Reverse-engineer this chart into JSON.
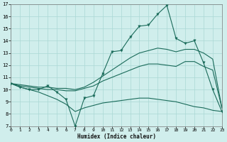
{
  "xlabel": "Humidex (Indice chaleur)",
  "bg_color": "#d0eeec",
  "grid_color": "#aad8d4",
  "line_color": "#1a6b5a",
  "xlim": [
    0,
    23
  ],
  "ylim": [
    7,
    17
  ],
  "xticks": [
    0,
    1,
    2,
    3,
    4,
    5,
    6,
    7,
    8,
    9,
    10,
    11,
    12,
    13,
    14,
    15,
    16,
    17,
    18,
    19,
    20,
    21,
    22,
    23
  ],
  "yticks": [
    7,
    8,
    9,
    10,
    11,
    12,
    13,
    14,
    15,
    16,
    17
  ],
  "main_x": [
    0,
    1,
    2,
    3,
    4,
    5,
    6,
    7,
    8,
    9,
    10,
    11,
    12,
    13,
    14,
    15,
    16,
    17,
    18,
    19,
    20,
    21,
    22,
    23
  ],
  "main_y": [
    10.5,
    10.2,
    10.0,
    10.0,
    10.3,
    9.8,
    9.2,
    7.0,
    9.3,
    9.5,
    11.3,
    13.1,
    13.2,
    14.3,
    15.2,
    15.3,
    16.2,
    16.9,
    14.2,
    13.8,
    14.0,
    12.2,
    10.0,
    8.2
  ],
  "low_x": [
    0,
    1,
    2,
    3,
    4,
    5,
    6,
    7,
    8,
    9,
    10,
    11,
    12,
    13,
    14,
    15,
    16,
    17,
    18,
    19,
    20,
    21,
    22,
    23
  ],
  "low_y": [
    10.5,
    10.2,
    10.0,
    9.8,
    9.5,
    9.2,
    8.8,
    8.2,
    8.5,
    8.7,
    8.9,
    9.0,
    9.1,
    9.2,
    9.3,
    9.3,
    9.2,
    9.1,
    9.0,
    8.8,
    8.6,
    8.5,
    8.3,
    8.2
  ],
  "mid_x": [
    0,
    1,
    2,
    3,
    4,
    5,
    6,
    7,
    8,
    9,
    10,
    11,
    12,
    13,
    14,
    15,
    16,
    17,
    18,
    19,
    20,
    21,
    22,
    23
  ],
  "mid_y": [
    10.5,
    10.3,
    10.2,
    10.1,
    10.0,
    10.0,
    9.9,
    9.9,
    10.1,
    10.3,
    10.7,
    11.0,
    11.3,
    11.6,
    11.9,
    12.1,
    12.1,
    12.0,
    11.9,
    12.3,
    12.3,
    11.9,
    11.6,
    8.5
  ],
  "hi_x": [
    0,
    1,
    2,
    3,
    4,
    5,
    6,
    7,
    8,
    9,
    10,
    11,
    12,
    13,
    14,
    15,
    16,
    17,
    18,
    19,
    20,
    21,
    22,
    23
  ],
  "hi_y": [
    10.5,
    10.4,
    10.3,
    10.2,
    10.2,
    10.1,
    10.1,
    10.0,
    10.2,
    10.6,
    11.1,
    11.6,
    12.1,
    12.6,
    13.0,
    13.2,
    13.4,
    13.3,
    13.1,
    13.3,
    13.3,
    13.0,
    12.5,
    8.5
  ]
}
